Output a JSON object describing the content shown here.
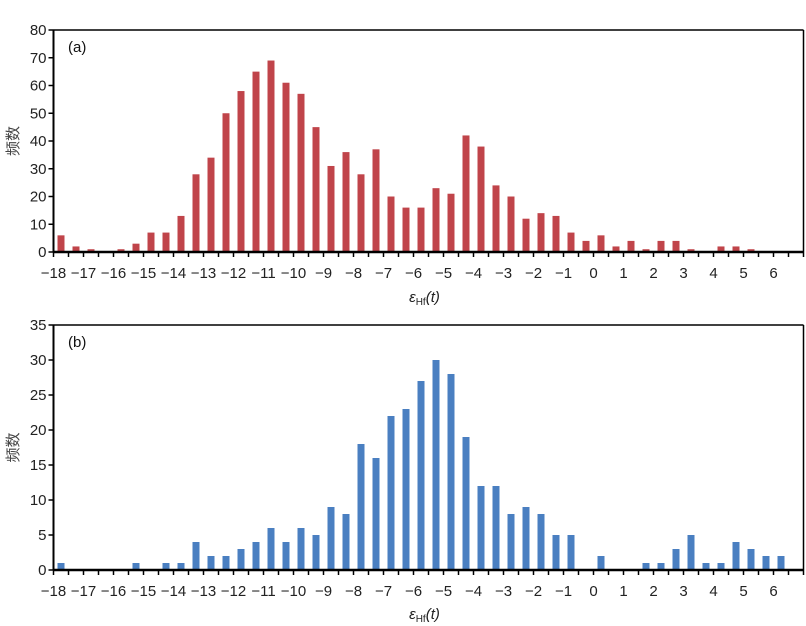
{
  "chart_data": [
    {
      "type": "bar",
      "panel_label": "(a)",
      "xlabel": "εHf(t)",
      "xlabel_main": "ε",
      "xlabel_sub": "Hf",
      "xlabel_tail": "(t)",
      "ylabel": "频数",
      "xlim": [
        -18,
        7
      ],
      "ylim": [
        0,
        80
      ],
      "ytick_step": 10,
      "xticks": [
        -18,
        -17,
        -16,
        -15,
        -14,
        -13,
        -12,
        -11,
        -10,
        -9,
        -8,
        -7,
        -6,
        -5,
        -4,
        -3,
        -2,
        -1,
        0,
        1,
        2,
        3,
        4,
        5,
        6
      ],
      "bin_width": 0.5,
      "color": "#c0444a",
      "grid": false,
      "x": [
        -17.75,
        -17.25,
        -16.75,
        -16.25,
        -15.75,
        -15.25,
        -14.75,
        -14.25,
        -13.75,
        -13.25,
        -12.75,
        -12.25,
        -11.75,
        -11.25,
        -10.75,
        -10.25,
        -9.75,
        -9.25,
        -8.75,
        -8.25,
        -7.75,
        -7.25,
        -6.75,
        -6.25,
        -5.75,
        -5.25,
        -4.75,
        -4.25,
        -3.75,
        -3.25,
        -2.75,
        -2.25,
        -1.75,
        -1.25,
        -0.75,
        -0.25,
        0.25,
        0.75,
        1.25,
        1.75,
        2.25,
        2.75,
        3.25,
        3.75,
        4.25,
        4.75,
        5.25,
        5.75,
        6.25,
        6.75
      ],
      "values": [
        6,
        2,
        1,
        0,
        1,
        3,
        7,
        7,
        13,
        28,
        34,
        50,
        58,
        65,
        69,
        61,
        57,
        45,
        31,
        36,
        28,
        37,
        20,
        16,
        16,
        23,
        21,
        42,
        38,
        24,
        20,
        12,
        14,
        13,
        7,
        4,
        6,
        2,
        4,
        1,
        4,
        4,
        1,
        0,
        2,
        2,
        1,
        0,
        0,
        0
      ]
    },
    {
      "type": "bar",
      "panel_label": "(b)",
      "xlabel": "εHf(t)",
      "xlabel_main": "ε",
      "xlabel_sub": "Hf",
      "xlabel_tail": "(t)",
      "ylabel": "频数",
      "xlim": [
        -18,
        7
      ],
      "ylim": [
        0,
        35
      ],
      "ytick_step": 5,
      "xticks": [
        -18,
        -17,
        -16,
        -15,
        -14,
        -13,
        -12,
        -11,
        -10,
        -9,
        -8,
        -7,
        -6,
        -5,
        -4,
        -3,
        -2,
        -1,
        0,
        1,
        2,
        3,
        4,
        5,
        6
      ],
      "bin_width": 0.5,
      "color": "#4a7fc1",
      "grid": false,
      "x": [
        -17.75,
        -17.25,
        -16.75,
        -16.25,
        -15.75,
        -15.25,
        -14.75,
        -14.25,
        -13.75,
        -13.25,
        -12.75,
        -12.25,
        -11.75,
        -11.25,
        -10.75,
        -10.25,
        -9.75,
        -9.25,
        -8.75,
        -8.25,
        -7.75,
        -7.25,
        -6.75,
        -6.25,
        -5.75,
        -5.25,
        -4.75,
        -4.25,
        -3.75,
        -3.25,
        -2.75,
        -2.25,
        -1.75,
        -1.25,
        -0.75,
        -0.25,
        0.25,
        0.75,
        1.25,
        1.75,
        2.25,
        2.75,
        3.25,
        3.75,
        4.25,
        4.75,
        5.25,
        5.75,
        6.25,
        6.75
      ],
      "values": [
        1,
        0,
        0,
        0,
        0,
        1,
        0,
        1,
        1,
        4,
        2,
        2,
        3,
        4,
        6,
        4,
        6,
        5,
        9,
        8,
        18,
        16,
        22,
        23,
        27,
        30,
        28,
        19,
        12,
        12,
        8,
        9,
        8,
        5,
        5,
        0,
        2,
        0,
        0,
        1,
        1,
        3,
        5,
        1,
        1,
        4,
        3,
        2,
        2,
        0
      ]
    }
  ]
}
